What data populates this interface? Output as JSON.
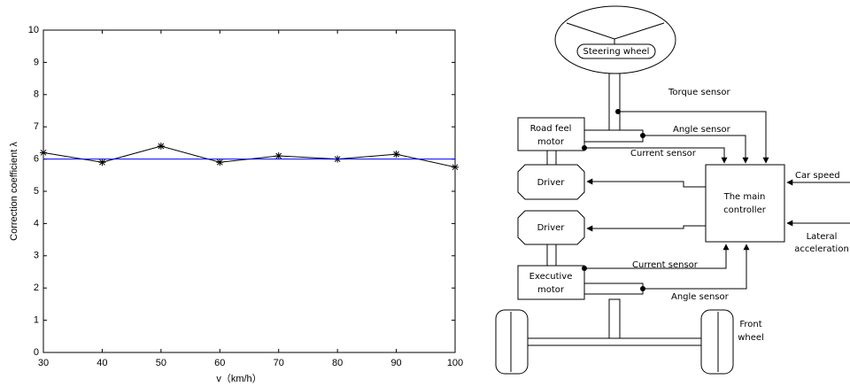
{
  "chart_data": {
    "type": "line",
    "xlabel": "v（km/h）",
    "ylabel": "Correction coefficient λ",
    "x": [
      30,
      40,
      50,
      60,
      70,
      80,
      90,
      100
    ],
    "series": [
      {
        "color": "#000000",
        "marker": "*",
        "values": [
          6.2,
          5.9,
          6.4,
          5.9,
          6.1,
          6.0,
          6.15,
          5.75
        ]
      },
      {
        "color": "#0000ff",
        "values": [
          6,
          6,
          6,
          6,
          6,
          6,
          6,
          6
        ]
      }
    ],
    "xlim": [
      30,
      100
    ],
    "xticks": [
      30,
      40,
      50,
      60,
      70,
      80,
      90,
      100
    ],
    "ylim": [
      0,
      10
    ],
    "yticks": [
      0,
      1,
      2,
      3,
      4,
      5,
      6,
      7,
      8,
      9,
      10
    ]
  },
  "diagram": {
    "steering_wheel": "Steering wheel",
    "torque_sensor": "Torque sensor",
    "road_feel_motor": [
      "Road feel",
      "motor"
    ],
    "angle_sensor_top": "Angle sensor",
    "current_sensor_top": "Current sensor",
    "driver_1": "Driver",
    "driver_2": "Driver",
    "main_controller": [
      "The main",
      "controller"
    ],
    "car_speed": "Car speed",
    "lateral_acceleration": [
      "Lateral",
      "acceleration"
    ],
    "current_sensor_bottom": "Current sensor",
    "executive_motor": [
      "Executive",
      "motor"
    ],
    "angle_sensor_bottom": "Angle sensor",
    "front_wheel": [
      "Front",
      "wheel"
    ]
  }
}
